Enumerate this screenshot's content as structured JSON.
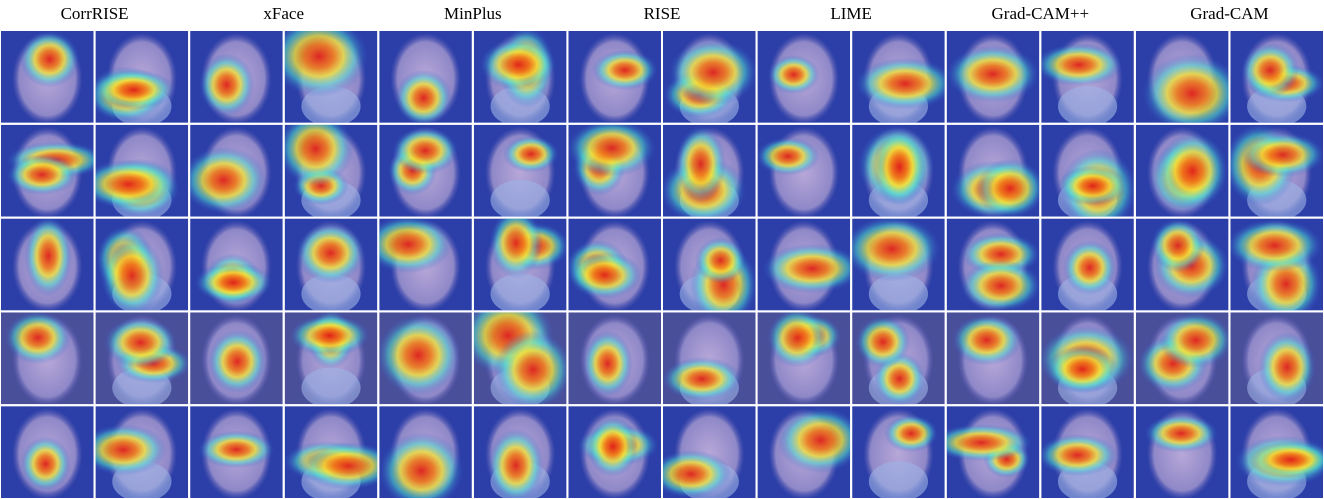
{
  "header": {
    "methods": [
      "CorrRISE",
      "xFace",
      "MinPlus",
      "RISE",
      "LIME",
      "Grad-CAM++",
      "Grad-CAM"
    ]
  }
}
